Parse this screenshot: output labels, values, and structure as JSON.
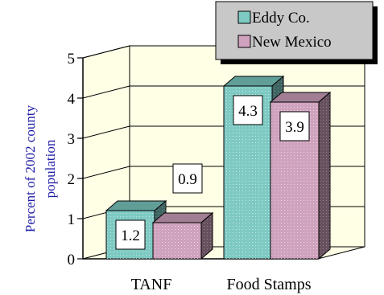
{
  "chart_data": {
    "type": "bar",
    "categories": [
      "TANF",
      "Food Stamps"
    ],
    "series": [
      {
        "name": "Eddy Co.",
        "values": [
          1.2,
          4.3
        ],
        "color": "#7ecac3"
      },
      {
        "name": "New Mexico",
        "values": [
          0.9,
          3.9
        ],
        "color": "#cfa2bd"
      }
    ],
    "data_labels": [
      [
        "1.2",
        "4.3"
      ],
      [
        "0.9",
        "3.9"
      ]
    ],
    "ylabel": "Percent of 2002 county population",
    "ylabel_lines": [
      "Percent of 2002 county",
      "population"
    ],
    "ylim": [
      0,
      5
    ],
    "yticks": [
      "0",
      "1",
      "2",
      "3",
      "4",
      "5"
    ],
    "grid": true,
    "legend_position": "top-right",
    "plot_background": "#ffffe6",
    "ylabel_color": "#1f1fa8",
    "legend_background": "#c8c8c8"
  }
}
